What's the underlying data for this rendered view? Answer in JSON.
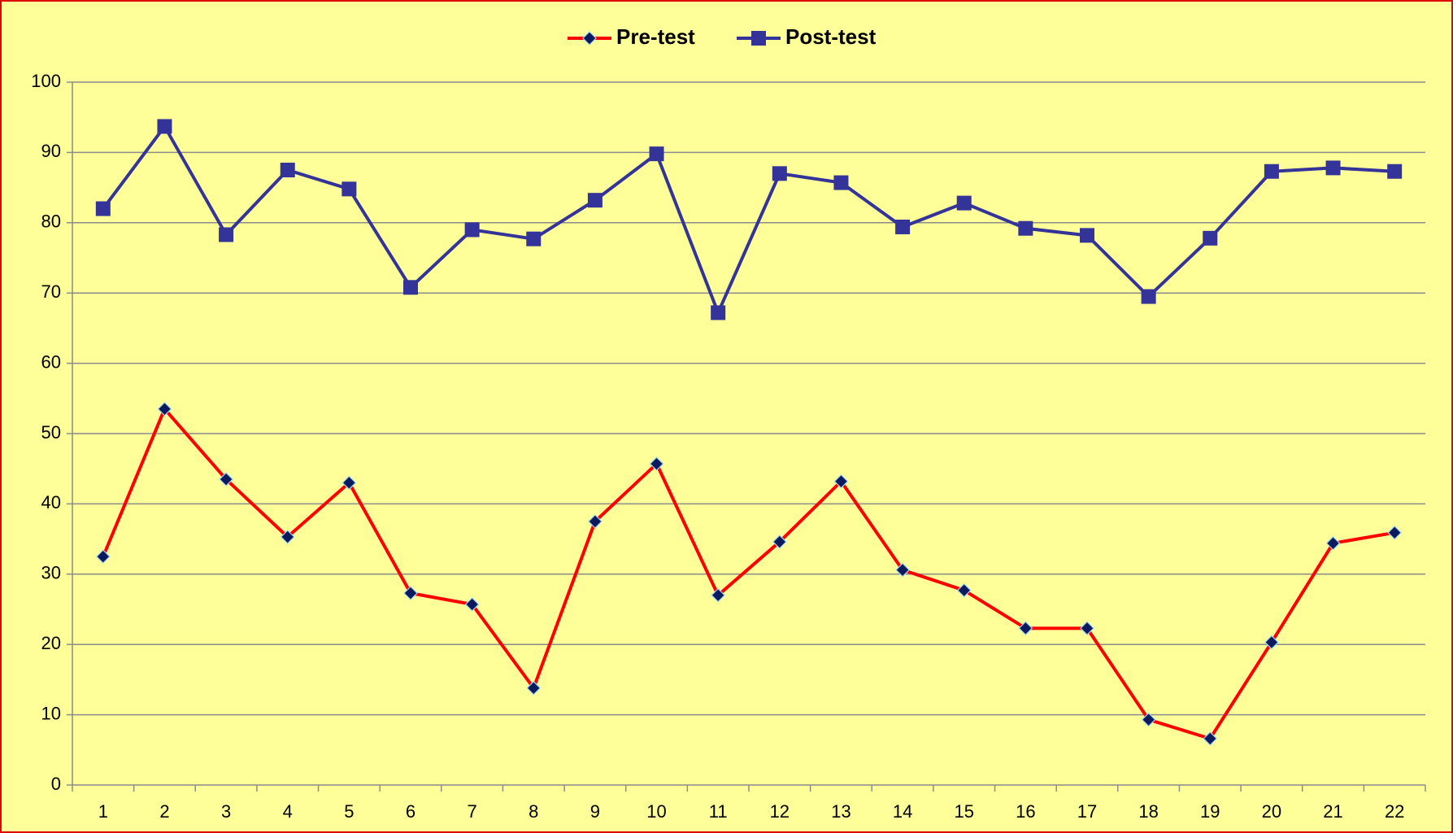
{
  "chart_data": {
    "type": "line",
    "categories": [
      1,
      2,
      3,
      4,
      5,
      6,
      7,
      8,
      9,
      10,
      11,
      12,
      13,
      14,
      15,
      16,
      17,
      18,
      19,
      20,
      21,
      22
    ],
    "series": [
      {
        "name": "Pre-test",
        "color": "#ff0000",
        "marker_color": "#0a1a5c",
        "marker": "diamond",
        "values": [
          32.5,
          53.5,
          43.5,
          35.3,
          43,
          27.3,
          25.7,
          13.8,
          37.5,
          45.7,
          27,
          34.6,
          43.2,
          30.6,
          27.7,
          22.3,
          22.3,
          9.3,
          6.6,
          20.3,
          34.4,
          35.9
        ]
      },
      {
        "name": "Post-test",
        "color": "#333399",
        "marker_color": "#333399",
        "marker": "square",
        "values": [
          82,
          93.7,
          78.3,
          87.5,
          84.8,
          70.8,
          79,
          77.7,
          83.2,
          89.8,
          67.2,
          87,
          85.7,
          79.4,
          82.8,
          79.2,
          78.2,
          69.5,
          77.8,
          87.3,
          87.8,
          87.3
        ]
      }
    ],
    "ylim": [
      0,
      100
    ],
    "yticks": [
      0,
      10,
      20,
      30,
      40,
      50,
      60,
      70,
      80,
      90,
      100
    ],
    "grid": true,
    "legend": "top"
  }
}
